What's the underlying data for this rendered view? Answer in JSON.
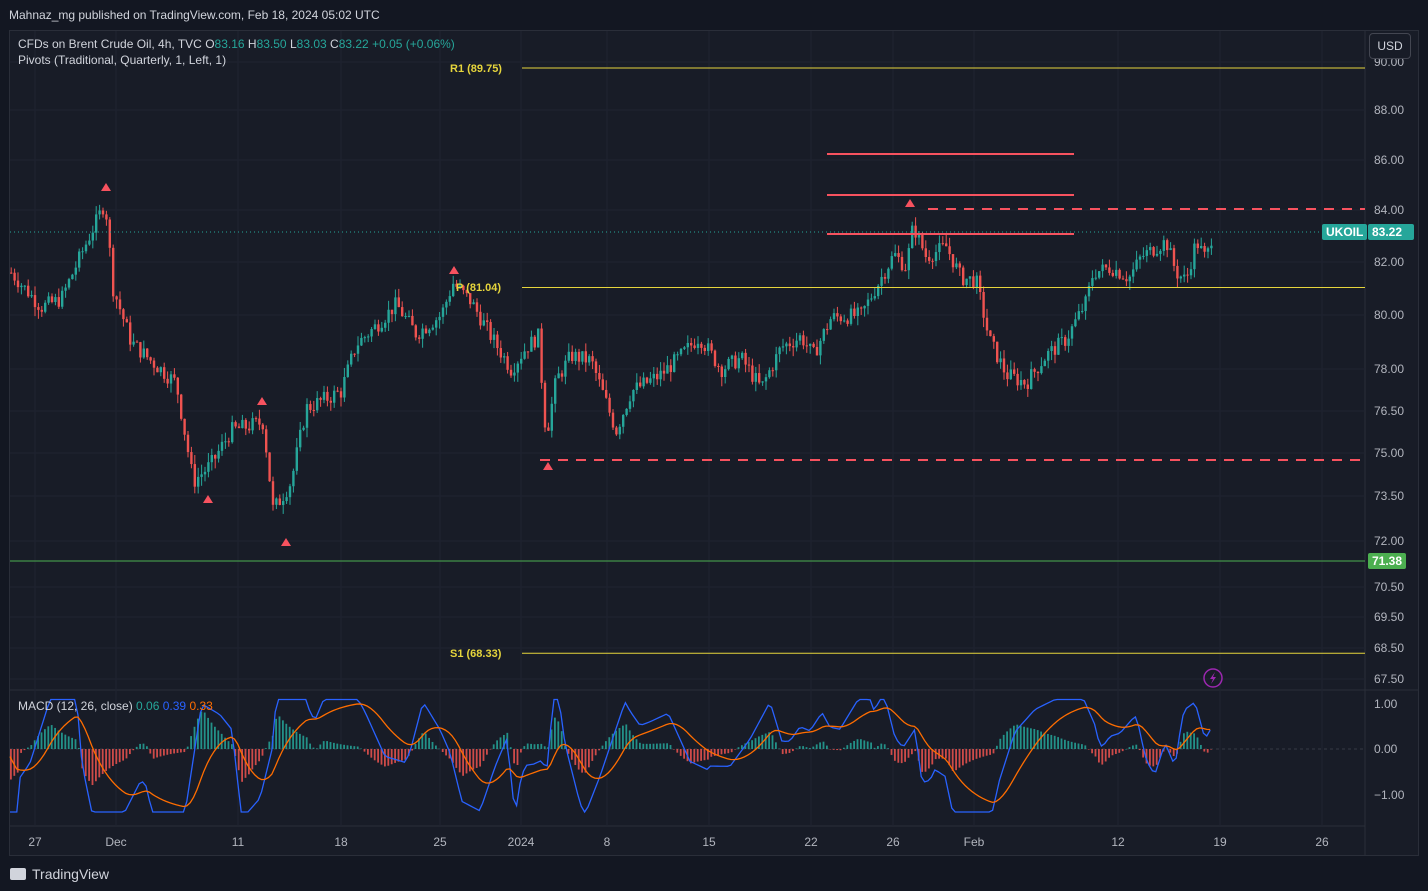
{
  "header": {
    "published": "Mahnaz_mg published on TradingView.com, Feb 18, 2024 05:02 UTC"
  },
  "legend": {
    "symbol": "CFDs on Brent Crude Oil, 4h, TVC",
    "o_label": "O",
    "o": "83.16",
    "h_label": "H",
    "h": "83.50",
    "l_label": "L",
    "l": "83.03",
    "c_label": "C",
    "c": "83.22",
    "change": "+0.05 (+0.06%)",
    "pivots": "Pivots (Traditional, Quarterly, 1, Left, 1)"
  },
  "currency": "USD",
  "ticker": {
    "name": "UKOIL",
    "price": "83.22",
    "support_label": "71.38"
  },
  "pivots": {
    "r1": "R1 (89.75)",
    "p": "P (81.04)",
    "s1": "S1 (68.33)"
  },
  "macd": {
    "label": "MACD (12, 26, close)",
    "hist": "0.06",
    "macd": "0.39",
    "signal": "0.33"
  },
  "price_axis": [
    "90.00",
    "88.00",
    "86.00",
    "84.00",
    "82.00",
    "80.00",
    "78.00",
    "76.50",
    "75.00",
    "73.50",
    "72.00",
    "70.50",
    "69.50",
    "68.50",
    "67.50"
  ],
  "macd_axis": [
    "1.00",
    "0.00",
    "−1.00"
  ],
  "time_axis": [
    "27",
    "Dec",
    "11",
    "18",
    "25",
    "2024",
    "8",
    "15",
    "22",
    "26",
    "Feb",
    "12",
    "19",
    "26"
  ],
  "footer": {
    "brand": "TradingView"
  },
  "colors": {
    "up": "#26a69a",
    "down": "#ef5350",
    "pivot": "#e6d53c",
    "levels": "#f7525f",
    "support": "#4caf50",
    "macd": "#2962ff",
    "signal": "#ff6d00"
  }
}
